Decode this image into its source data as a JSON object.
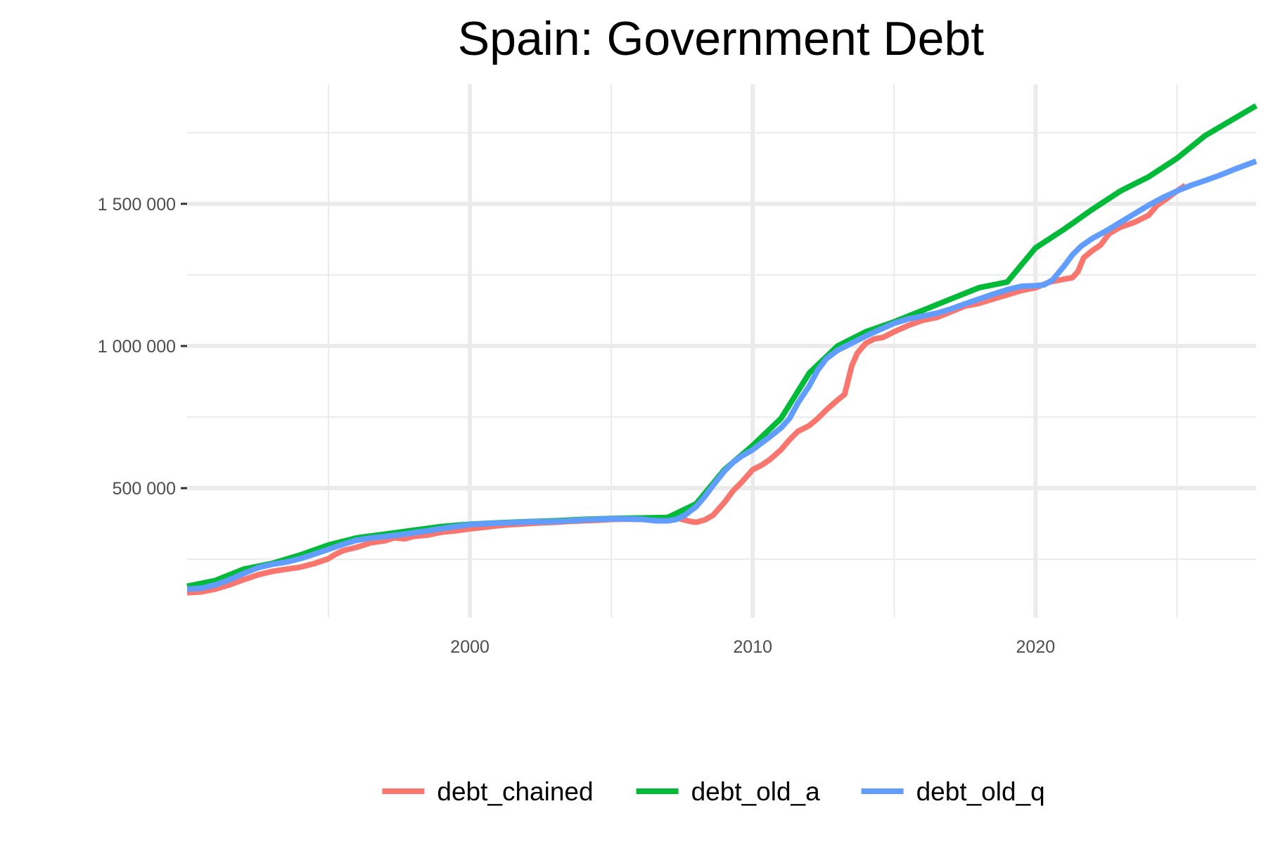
{
  "chart_data": {
    "type": "line",
    "title": "Spain: Government Debt",
    "xlabel": "",
    "ylabel": "",
    "xlim": [
      1990.0,
      2027.8
    ],
    "ylim": [
      45000,
      1920000
    ],
    "x_ticks": [
      {
        "value": 2000,
        "label": "2000"
      },
      {
        "value": 2010,
        "label": "2010"
      },
      {
        "value": 2020,
        "label": "2020"
      }
    ],
    "x_minor_ticks": [
      1995,
      2005,
      2015,
      2025
    ],
    "y_ticks": [
      {
        "value": 500000,
        "label": "500 000"
      },
      {
        "value": 1000000,
        "label": "1 000 000"
      },
      {
        "value": 1500000,
        "label": "1 500 000"
      }
    ],
    "y_minor_ticks": [
      250000,
      750000,
      1250000,
      1750000
    ],
    "grid": true,
    "legend_position": "bottom",
    "series": [
      {
        "name": "debt_chained",
        "color": "#F8766D",
        "points": [
          [
            1990.0,
            132000
          ],
          [
            1990.5,
            135000
          ],
          [
            1991.0,
            145000
          ],
          [
            1991.5,
            160000
          ],
          [
            1992.0,
            178000
          ],
          [
            1992.5,
            195000
          ],
          [
            1993.0,
            207000
          ],
          [
            1993.5,
            215000
          ],
          [
            1994.0,
            222000
          ],
          [
            1994.5,
            235000
          ],
          [
            1995.0,
            252000
          ],
          [
            1995.2,
            265000
          ],
          [
            1995.5,
            280000
          ],
          [
            1996.0,
            292000
          ],
          [
            1996.5,
            308000
          ],
          [
            1997.0,
            315000
          ],
          [
            1997.3,
            325000
          ],
          [
            1997.7,
            322000
          ],
          [
            1998.0,
            330000
          ],
          [
            1998.5,
            335000
          ],
          [
            1999.0,
            345000
          ],
          [
            1999.5,
            350000
          ],
          [
            2000.0,
            357000
          ],
          [
            2000.5,
            362000
          ],
          [
            2001.0,
            368000
          ],
          [
            2001.5,
            372000
          ],
          [
            2002.0,
            375000
          ],
          [
            2002.5,
            378000
          ],
          [
            2003.0,
            380000
          ],
          [
            2003.5,
            383000
          ],
          [
            2004.0,
            385000
          ],
          [
            2004.5,
            387000
          ],
          [
            2005.0,
            390000
          ],
          [
            2005.5,
            391000
          ],
          [
            2006.0,
            390000
          ],
          [
            2006.5,
            392000
          ],
          [
            2007.0,
            396000
          ],
          [
            2007.2,
            400000
          ],
          [
            2007.5,
            390000
          ],
          [
            2007.8,
            383000
          ],
          [
            2008.0,
            380000
          ],
          [
            2008.3,
            388000
          ],
          [
            2008.6,
            405000
          ],
          [
            2009.0,
            450000
          ],
          [
            2009.3,
            490000
          ],
          [
            2009.6,
            520000
          ],
          [
            2010.0,
            565000
          ],
          [
            2010.3,
            580000
          ],
          [
            2010.6,
            600000
          ],
          [
            2011.0,
            635000
          ],
          [
            2011.3,
            670000
          ],
          [
            2011.6,
            700000
          ],
          [
            2012.0,
            720000
          ],
          [
            2012.3,
            745000
          ],
          [
            2012.6,
            775000
          ],
          [
            2013.0,
            810000
          ],
          [
            2013.25,
            830000
          ],
          [
            2013.5,
            930000
          ],
          [
            2013.7,
            975000
          ],
          [
            2014.0,
            1010000
          ],
          [
            2014.3,
            1025000
          ],
          [
            2014.6,
            1030000
          ],
          [
            2015.0,
            1050000
          ],
          [
            2015.5,
            1072000
          ],
          [
            2016.0,
            1090000
          ],
          [
            2016.5,
            1100000
          ],
          [
            2017.0,
            1120000
          ],
          [
            2017.5,
            1140000
          ],
          [
            2018.0,
            1150000
          ],
          [
            2018.5,
            1165000
          ],
          [
            2019.0,
            1180000
          ],
          [
            2019.5,
            1195000
          ],
          [
            2020.0,
            1205000
          ],
          [
            2020.5,
            1225000
          ],
          [
            2021.0,
            1235000
          ],
          [
            2021.3,
            1240000
          ],
          [
            2021.5,
            1262000
          ],
          [
            2021.7,
            1310000
          ],
          [
            2022.0,
            1335000
          ],
          [
            2022.3,
            1355000
          ],
          [
            2022.6,
            1395000
          ],
          [
            2023.0,
            1418000
          ],
          [
            2023.5,
            1435000
          ],
          [
            2024.0,
            1460000
          ],
          [
            2024.3,
            1495000
          ],
          [
            2024.6,
            1515000
          ],
          [
            2025.0,
            1545000
          ],
          [
            2025.3,
            1565000
          ]
        ]
      },
      {
        "name": "debt_old_a",
        "color": "#00BA38",
        "points": [
          [
            1990.0,
            155000
          ],
          [
            1991.0,
            175000
          ],
          [
            1992.0,
            215000
          ],
          [
            1993.0,
            235000
          ],
          [
            1994.0,
            265000
          ],
          [
            1995.0,
            300000
          ],
          [
            1996.0,
            325000
          ],
          [
            1997.0,
            338000
          ],
          [
            1998.0,
            352000
          ],
          [
            1999.0,
            365000
          ],
          [
            2000.0,
            373000
          ],
          [
            2001.0,
            378000
          ],
          [
            2002.0,
            382000
          ],
          [
            2003.0,
            385000
          ],
          [
            2004.0,
            390000
          ],
          [
            2005.0,
            393000
          ],
          [
            2006.0,
            395000
          ],
          [
            2007.0,
            397000
          ],
          [
            2008.0,
            445000
          ],
          [
            2009.0,
            565000
          ],
          [
            2010.0,
            650000
          ],
          [
            2011.0,
            745000
          ],
          [
            2012.0,
            905000
          ],
          [
            2013.0,
            1000000
          ],
          [
            2014.0,
            1050000
          ],
          [
            2015.0,
            1085000
          ],
          [
            2016.0,
            1125000
          ],
          [
            2017.0,
            1165000
          ],
          [
            2018.0,
            1205000
          ],
          [
            2019.0,
            1225000
          ],
          [
            2020.0,
            1345000
          ],
          [
            2021.0,
            1410000
          ],
          [
            2022.0,
            1480000
          ],
          [
            2023.0,
            1545000
          ],
          [
            2024.0,
            1595000
          ],
          [
            2025.0,
            1660000
          ],
          [
            2026.0,
            1740000
          ],
          [
            2027.8,
            1845000
          ]
        ]
      },
      {
        "name": "debt_old_q",
        "color": "#619CFF",
        "points": [
          [
            1990.0,
            145000
          ],
          [
            1990.5,
            148000
          ],
          [
            1991.0,
            160000
          ],
          [
            1991.5,
            178000
          ],
          [
            1992.0,
            200000
          ],
          [
            1992.5,
            220000
          ],
          [
            1993.0,
            232000
          ],
          [
            1993.5,
            240000
          ],
          [
            1994.0,
            252000
          ],
          [
            1994.5,
            268000
          ],
          [
            1995.0,
            285000
          ],
          [
            1995.5,
            302000
          ],
          [
            1996.0,
            317000
          ],
          [
            1996.5,
            325000
          ],
          [
            1997.0,
            330000
          ],
          [
            1997.5,
            336000
          ],
          [
            1998.0,
            343000
          ],
          [
            1998.5,
            350000
          ],
          [
            1999.0,
            358000
          ],
          [
            1999.5,
            365000
          ],
          [
            2000.0,
            372000
          ],
          [
            2000.5,
            375000
          ],
          [
            2001.0,
            377000
          ],
          [
            2001.5,
            379000
          ],
          [
            2002.0,
            381000
          ],
          [
            2002.5,
            382000
          ],
          [
            2003.0,
            383000
          ],
          [
            2003.5,
            385000
          ],
          [
            2004.0,
            388000
          ],
          [
            2004.5,
            390000
          ],
          [
            2005.0,
            392000
          ],
          [
            2005.5,
            392000
          ],
          [
            2006.0,
            391000
          ],
          [
            2006.3,
            388000
          ],
          [
            2006.6,
            385000
          ],
          [
            2007.0,
            385000
          ],
          [
            2007.3,
            390000
          ],
          [
            2007.6,
            405000
          ],
          [
            2008.0,
            435000
          ],
          [
            2008.3,
            470000
          ],
          [
            2008.6,
            510000
          ],
          [
            2009.0,
            560000
          ],
          [
            2009.3,
            590000
          ],
          [
            2009.6,
            612000
          ],
          [
            2010.0,
            635000
          ],
          [
            2010.3,
            658000
          ],
          [
            2010.6,
            680000
          ],
          [
            2011.0,
            712000
          ],
          [
            2011.3,
            745000
          ],
          [
            2011.6,
            800000
          ],
          [
            2012.0,
            860000
          ],
          [
            2012.3,
            915000
          ],
          [
            2012.6,
            955000
          ],
          [
            2013.0,
            985000
          ],
          [
            2013.5,
            1010000
          ],
          [
            2014.0,
            1035000
          ],
          [
            2014.5,
            1058000
          ],
          [
            2015.0,
            1080000
          ],
          [
            2015.5,
            1095000
          ],
          [
            2016.0,
            1105000
          ],
          [
            2016.5,
            1115000
          ],
          [
            2017.0,
            1130000
          ],
          [
            2017.5,
            1148000
          ],
          [
            2018.0,
            1165000
          ],
          [
            2018.5,
            1182000
          ],
          [
            2019.0,
            1198000
          ],
          [
            2019.5,
            1210000
          ],
          [
            2020.0,
            1212000
          ],
          [
            2020.3,
            1215000
          ],
          [
            2020.6,
            1232000
          ],
          [
            2021.0,
            1280000
          ],
          [
            2021.3,
            1320000
          ],
          [
            2021.6,
            1350000
          ],
          [
            2022.0,
            1378000
          ],
          [
            2022.5,
            1405000
          ],
          [
            2023.0,
            1435000
          ],
          [
            2023.5,
            1465000
          ],
          [
            2024.0,
            1495000
          ],
          [
            2024.5,
            1522000
          ],
          [
            2025.0,
            1545000
          ],
          [
            2025.5,
            1565000
          ],
          [
            2026.0,
            1582000
          ],
          [
            2026.5,
            1600000
          ],
          [
            2027.0,
            1620000
          ],
          [
            2027.8,
            1650000
          ]
        ]
      }
    ]
  }
}
